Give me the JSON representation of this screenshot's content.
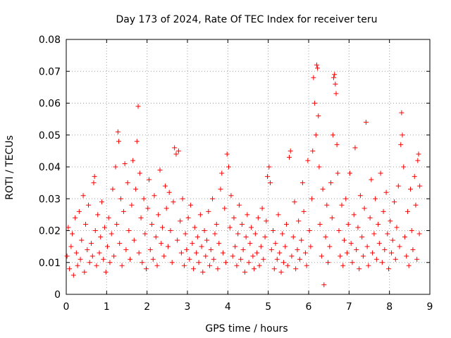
{
  "chart_data": {
    "type": "scatter",
    "title": "Day 173 of 2024, Rate Of TEC Index for receiver teru",
    "xlabel": "GPS time / hours",
    "ylabel": "ROTI / TECUs",
    "xlim": [
      0,
      9
    ],
    "ylim": [
      0,
      0.08
    ],
    "x_ticks": [
      "0",
      "1",
      "2",
      "3",
      "4",
      "5",
      "6",
      "7",
      "8",
      "9"
    ],
    "y_ticks": [
      "0",
      "0.01",
      "0.02",
      "0.03",
      "0.04",
      "0.05",
      "0.06",
      "0.07",
      "0.08"
    ],
    "grid": true,
    "marker": "+",
    "series_color": "#ff0000",
    "series": [
      {
        "name": "ROTI",
        "points": [
          [
            0.02,
            0.012
          ],
          [
            0.05,
            0.021
          ],
          [
            0.08,
            0.008
          ],
          [
            0.12,
            0.015
          ],
          [
            0.15,
            0.019
          ],
          [
            0.18,
            0.006
          ],
          [
            0.22,
            0.024
          ],
          [
            0.25,
            0.013
          ],
          [
            0.28,
            0.009
          ],
          [
            0.32,
            0.026
          ],
          [
            0.35,
            0.011
          ],
          [
            0.38,
            0.017
          ],
          [
            0.42,
            0.031
          ],
          [
            0.45,
            0.007
          ],
          [
            0.48,
            0.022
          ],
          [
            0.52,
            0.014
          ],
          [
            0.55,
            0.028
          ],
          [
            0.58,
            0.01
          ],
          [
            0.62,
            0.016
          ],
          [
            0.65,
            0.012
          ],
          [
            0.68,
            0.035
          ],
          [
            0.7,
            0.037
          ],
          [
            0.72,
            0.02
          ],
          [
            0.75,
            0.009
          ],
          [
            0.78,
            0.025
          ],
          [
            0.82,
            0.013
          ],
          [
            0.85,
            0.018
          ],
          [
            0.88,
            0.029
          ],
          [
            0.92,
            0.011
          ],
          [
            0.95,
            0.021
          ],
          [
            0.98,
            0.007
          ],
          [
            1.02,
            0.015
          ],
          [
            1.05,
            0.024
          ],
          [
            1.08,
            0.01
          ],
          [
            1.12,
            0.019
          ],
          [
            1.15,
            0.033
          ],
          [
            1.18,
            0.012
          ],
          [
            1.22,
            0.04
          ],
          [
            1.25,
            0.022
          ],
          [
            1.28,
            0.051
          ],
          [
            1.3,
            0.048
          ],
          [
            1.32,
            0.016
          ],
          [
            1.35,
            0.03
          ],
          [
            1.38,
            0.009
          ],
          [
            1.42,
            0.026
          ],
          [
            1.45,
            0.041
          ],
          [
            1.48,
            0.014
          ],
          [
            1.52,
            0.035
          ],
          [
            1.55,
            0.02
          ],
          [
            1.58,
            0.011
          ],
          [
            1.62,
            0.028
          ],
          [
            1.65,
            0.042
          ],
          [
            1.68,
            0.017
          ],
          [
            1.72,
            0.033
          ],
          [
            1.75,
            0.048
          ],
          [
            1.78,
            0.059
          ],
          [
            1.8,
            0.013
          ],
          [
            1.82,
            0.038
          ],
          [
            1.85,
            0.024
          ],
          [
            1.88,
            0.01
          ],
          [
            1.92,
            0.03
          ],
          [
            1.95,
            0.019
          ],
          [
            1.98,
            0.008
          ],
          [
            2.02,
            0.027
          ],
          [
            2.05,
            0.036
          ],
          [
            2.08,
            0.014
          ],
          [
            2.12,
            0.022
          ],
          [
            2.15,
            0.011
          ],
          [
            2.18,
            0.031
          ],
          [
            2.22,
            0.018
          ],
          [
            2.25,
            0.009
          ],
          [
            2.28,
            0.025
          ],
          [
            2.32,
            0.039
          ],
          [
            2.35,
            0.016
          ],
          [
            2.38,
            0.021
          ],
          [
            2.42,
            0.012
          ],
          [
            2.45,
            0.034
          ],
          [
            2.48,
            0.027
          ],
          [
            2.52,
            0.015
          ],
          [
            2.55,
            0.032
          ],
          [
            2.58,
            0.02
          ],
          [
            2.62,
            0.01
          ],
          [
            2.65,
            0.029
          ],
          [
            2.68,
            0.046
          ],
          [
            2.72,
            0.044
          ],
          [
            2.75,
            0.017
          ],
          [
            2.78,
            0.045
          ],
          [
            2.82,
            0.023
          ],
          [
            2.85,
            0.013
          ],
          [
            2.88,
            0.03
          ],
          [
            2.92,
            0.009
          ],
          [
            2.95,
            0.019
          ],
          [
            2.98,
            0.014
          ],
          [
            3.02,
            0.024
          ],
          [
            3.05,
            0.011
          ],
          [
            3.08,
            0.028
          ],
          [
            3.12,
            0.016
          ],
          [
            3.15,
            0.008
          ],
          [
            3.18,
            0.021
          ],
          [
            3.22,
            0.013
          ],
          [
            3.25,
            0.018
          ],
          [
            3.28,
            0.01
          ],
          [
            3.32,
            0.025
          ],
          [
            3.35,
            0.015
          ],
          [
            3.38,
            0.007
          ],
          [
            3.42,
            0.02
          ],
          [
            3.45,
            0.012
          ],
          [
            3.48,
            0.017
          ],
          [
            3.52,
            0.026
          ],
          [
            3.55,
            0.009
          ],
          [
            3.58,
            0.014
          ],
          [
            3.62,
            0.03
          ],
          [
            3.65,
            0.011
          ],
          [
            3.68,
            0.019
          ],
          [
            3.72,
            0.022
          ],
          [
            3.75,
            0.008
          ],
          [
            3.78,
            0.016
          ],
          [
            3.82,
            0.033
          ],
          [
            3.85,
            0.038
          ],
          [
            3.88,
            0.013
          ],
          [
            3.92,
            0.027
          ],
          [
            3.95,
            0.01
          ],
          [
            3.98,
            0.044
          ],
          [
            4.02,
            0.04
          ],
          [
            4.05,
            0.021
          ],
          [
            4.08,
            0.031
          ],
          [
            4.12,
            0.012
          ],
          [
            4.15,
            0.024
          ],
          [
            4.18,
            0.015
          ],
          [
            4.22,
            0.009
          ],
          [
            4.25,
            0.019
          ],
          [
            4.28,
            0.028
          ],
          [
            4.32,
            0.011
          ],
          [
            4.35,
            0.022
          ],
          [
            4.38,
            0.014
          ],
          [
            4.42,
            0.007
          ],
          [
            4.45,
            0.018
          ],
          [
            4.48,
            0.025
          ],
          [
            4.52,
            0.01
          ],
          [
            4.55,
            0.016
          ],
          [
            4.58,
            0.021
          ],
          [
            4.62,
            0.012
          ],
          [
            4.65,
            0.008
          ],
          [
            4.68,
            0.019
          ],
          [
            4.72,
            0.013
          ],
          [
            4.75,
            0.024
          ],
          [
            4.78,
            0.009
          ],
          [
            4.82,
            0.015
          ],
          [
            4.85,
            0.027
          ],
          [
            4.88,
            0.011
          ],
          [
            4.92,
            0.018
          ],
          [
            4.95,
            0.023
          ],
          [
            4.98,
            0.037
          ],
          [
            5.02,
            0.04
          ],
          [
            5.05,
            0.035
          ],
          [
            5.08,
            0.014
          ],
          [
            5.12,
            0.02
          ],
          [
            5.15,
            0.008
          ],
          [
            5.18,
            0.016
          ],
          [
            5.22,
            0.011
          ],
          [
            5.25,
            0.025
          ],
          [
            5.28,
            0.013
          ],
          [
            5.32,
            0.007
          ],
          [
            5.35,
            0.019
          ],
          [
            5.38,
            0.01
          ],
          [
            5.42,
            0.015
          ],
          [
            5.45,
            0.022
          ],
          [
            5.48,
            0.009
          ],
          [
            5.52,
            0.043
          ],
          [
            5.55,
            0.045
          ],
          [
            5.58,
            0.012
          ],
          [
            5.62,
            0.018
          ],
          [
            5.65,
            0.029
          ],
          [
            5.68,
            0.008
          ],
          [
            5.72,
            0.014
          ],
          [
            5.75,
            0.023
          ],
          [
            5.78,
            0.011
          ],
          [
            5.82,
            0.017
          ],
          [
            5.85,
            0.035
          ],
          [
            5.88,
            0.026
          ],
          [
            5.92,
            0.013
          ],
          [
            5.95,
            0.009
          ],
          [
            5.98,
            0.042
          ],
          [
            6.02,
            0.02
          ],
          [
            6.05,
            0.015
          ],
          [
            6.08,
            0.03
          ],
          [
            6.1,
            0.045
          ],
          [
            6.12,
            0.068
          ],
          [
            6.15,
            0.06
          ],
          [
            6.18,
            0.05
          ],
          [
            6.2,
            0.072
          ],
          [
            6.22,
            0.071
          ],
          [
            6.24,
            0.056
          ],
          [
            6.26,
            0.04
          ],
          [
            6.28,
            0.022
          ],
          [
            6.32,
            0.012
          ],
          [
            6.35,
            0.033
          ],
          [
            6.38,
            0.003
          ],
          [
            6.42,
            0.018
          ],
          [
            6.45,
            0.028
          ],
          [
            6.48,
            0.01
          ],
          [
            6.52,
            0.015
          ],
          [
            6.55,
            0.035
          ],
          [
            6.58,
            0.024
          ],
          [
            6.6,
            0.05
          ],
          [
            6.62,
            0.068
          ],
          [
            6.64,
            0.069
          ],
          [
            6.66,
            0.066
          ],
          [
            6.68,
            0.063
          ],
          [
            6.7,
            0.047
          ],
          [
            6.72,
            0.038
          ],
          [
            6.75,
            0.02
          ],
          [
            6.78,
            0.012
          ],
          [
            6.82,
            0.028
          ],
          [
            6.85,
            0.009
          ],
          [
            6.88,
            0.017
          ],
          [
            6.92,
            0.03
          ],
          [
            6.95,
            0.013
          ],
          [
            6.98,
            0.022
          ],
          [
            7.02,
            0.038
          ],
          [
            7.05,
            0.016
          ],
          [
            7.08,
            0.01
          ],
          [
            7.12,
            0.025
          ],
          [
            7.15,
            0.046
          ],
          [
            7.18,
            0.014
          ],
          [
            7.22,
            0.021
          ],
          [
            7.25,
            0.008
          ],
          [
            7.28,
            0.031
          ],
          [
            7.32,
            0.018
          ],
          [
            7.35,
            0.012
          ],
          [
            7.38,
            0.027
          ],
          [
            7.42,
            0.054
          ],
          [
            7.45,
            0.015
          ],
          [
            7.48,
            0.009
          ],
          [
            7.52,
            0.024
          ],
          [
            7.55,
            0.036
          ],
          [
            7.58,
            0.013
          ],
          [
            7.62,
            0.019
          ],
          [
            7.65,
            0.03
          ],
          [
            7.68,
            0.011
          ],
          [
            7.72,
            0.022
          ],
          [
            7.75,
            0.016
          ],
          [
            7.78,
            0.038
          ],
          [
            7.82,
            0.01
          ],
          [
            7.85,
            0.026
          ],
          [
            7.88,
            0.014
          ],
          [
            7.92,
            0.032
          ],
          [
            7.95,
            0.019
          ],
          [
            7.98,
            0.008
          ],
          [
            8.02,
            0.023
          ],
          [
            8.05,
            0.013
          ],
          [
            8.08,
            0.017
          ],
          [
            8.12,
            0.029
          ],
          [
            8.15,
            0.011
          ],
          [
            8.18,
            0.021
          ],
          [
            8.22,
            0.034
          ],
          [
            8.25,
            0.015
          ],
          [
            8.28,
            0.047
          ],
          [
            8.3,
            0.057
          ],
          [
            8.32,
            0.05
          ],
          [
            8.35,
            0.04
          ],
          [
            8.38,
            0.018
          ],
          [
            8.42,
            0.012
          ],
          [
            8.45,
            0.026
          ],
          [
            8.48,
            0.009
          ],
          [
            8.52,
            0.033
          ],
          [
            8.55,
            0.02
          ],
          [
            8.58,
            0.014
          ],
          [
            8.62,
            0.037
          ],
          [
            8.65,
            0.028
          ],
          [
            8.68,
            0.011
          ],
          [
            8.7,
            0.042
          ],
          [
            8.72,
            0.044
          ],
          [
            8.74,
            0.019
          ],
          [
            8.75,
            0.034
          ]
        ]
      }
    ]
  }
}
